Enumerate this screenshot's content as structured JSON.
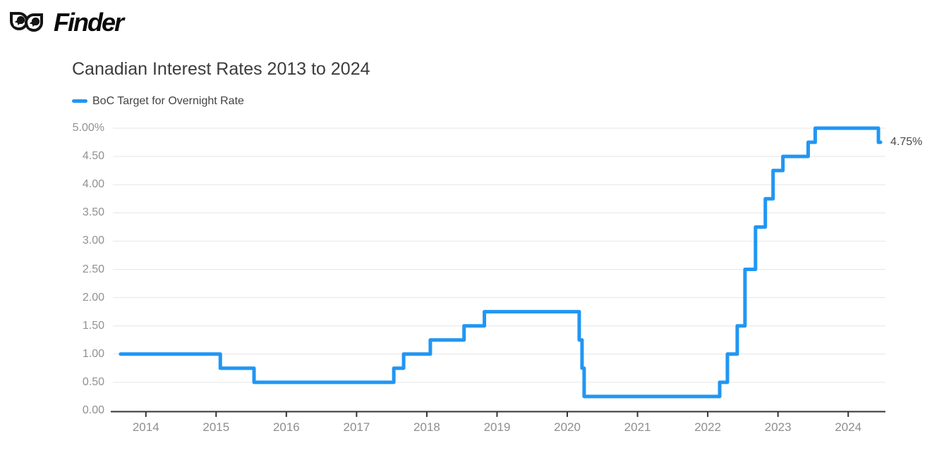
{
  "header": {
    "brand": "Finder"
  },
  "colors": {
    "line": "#2196F3",
    "grid": "#e6e6e6",
    "axis": "#333333",
    "tick_label": "#8e8e8e",
    "title": "#3c3c3c",
    "end_label": "#4a4a4a",
    "logo": "#141414"
  },
  "chart_data": {
    "type": "line",
    "mode": "step-after",
    "title": "Canadian Interest Rates 2013 to 2024",
    "grid": "horizontal-on",
    "legend_position": "top-left",
    "x_axis": {
      "min": 2013.48,
      "max": 2024.53,
      "ticks": [
        {
          "label": "2014",
          "value": 2014
        },
        {
          "label": "2015",
          "value": 2015
        },
        {
          "label": "2016",
          "value": 2016
        },
        {
          "label": "2017",
          "value": 2017
        },
        {
          "label": "2018",
          "value": 2018
        },
        {
          "label": "2019",
          "value": 2019
        },
        {
          "label": "2020",
          "value": 2020
        },
        {
          "label": "2021",
          "value": 2021
        },
        {
          "label": "2022",
          "value": 2022
        },
        {
          "label": "2023",
          "value": 2023
        },
        {
          "label": "2024",
          "value": 2024
        }
      ]
    },
    "y_axis": {
      "min": 0,
      "max": 5,
      "ticks": [
        {
          "label": "5.00%",
          "value": 5.0
        },
        {
          "label": "4.50",
          "value": 4.5
        },
        {
          "label": "4.00",
          "value": 4.0
        },
        {
          "label": "3.50",
          "value": 3.5
        },
        {
          "label": "3.00",
          "value": 3.0
        },
        {
          "label": "2.50",
          "value": 2.5
        },
        {
          "label": "2.00",
          "value": 2.0
        },
        {
          "label": "1.50",
          "value": 1.5
        },
        {
          "label": "1.00",
          "value": 1.0
        },
        {
          "label": "0.50",
          "value": 0.5
        },
        {
          "label": "0.00",
          "value": 0.0
        }
      ]
    },
    "series": [
      {
        "name": "BoC Target for Overnight Rate",
        "color": "#2196F3",
        "end_label": "4.75%",
        "end_x": 2024.46,
        "points": [
          {
            "x": 2013.64,
            "y": 1.0
          },
          {
            "x": 2015.06,
            "y": 0.75
          },
          {
            "x": 2015.54,
            "y": 0.5
          },
          {
            "x": 2017.53,
            "y": 0.75
          },
          {
            "x": 2017.67,
            "y": 1.0
          },
          {
            "x": 2018.05,
            "y": 1.25
          },
          {
            "x": 2018.53,
            "y": 1.5
          },
          {
            "x": 2018.82,
            "y": 1.75
          },
          {
            "x": 2020.17,
            "y": 1.25
          },
          {
            "x": 2020.21,
            "y": 0.75
          },
          {
            "x": 2020.24,
            "y": 0.25
          },
          {
            "x": 2022.17,
            "y": 0.5
          },
          {
            "x": 2022.28,
            "y": 1.0
          },
          {
            "x": 2022.42,
            "y": 1.5
          },
          {
            "x": 2022.53,
            "y": 2.5
          },
          {
            "x": 2022.68,
            "y": 3.25
          },
          {
            "x": 2022.82,
            "y": 3.75
          },
          {
            "x": 2022.93,
            "y": 4.25
          },
          {
            "x": 2023.07,
            "y": 4.5
          },
          {
            "x": 2023.43,
            "y": 4.75
          },
          {
            "x": 2023.53,
            "y": 5.0
          },
          {
            "x": 2024.43,
            "y": 4.75
          }
        ]
      }
    ]
  }
}
